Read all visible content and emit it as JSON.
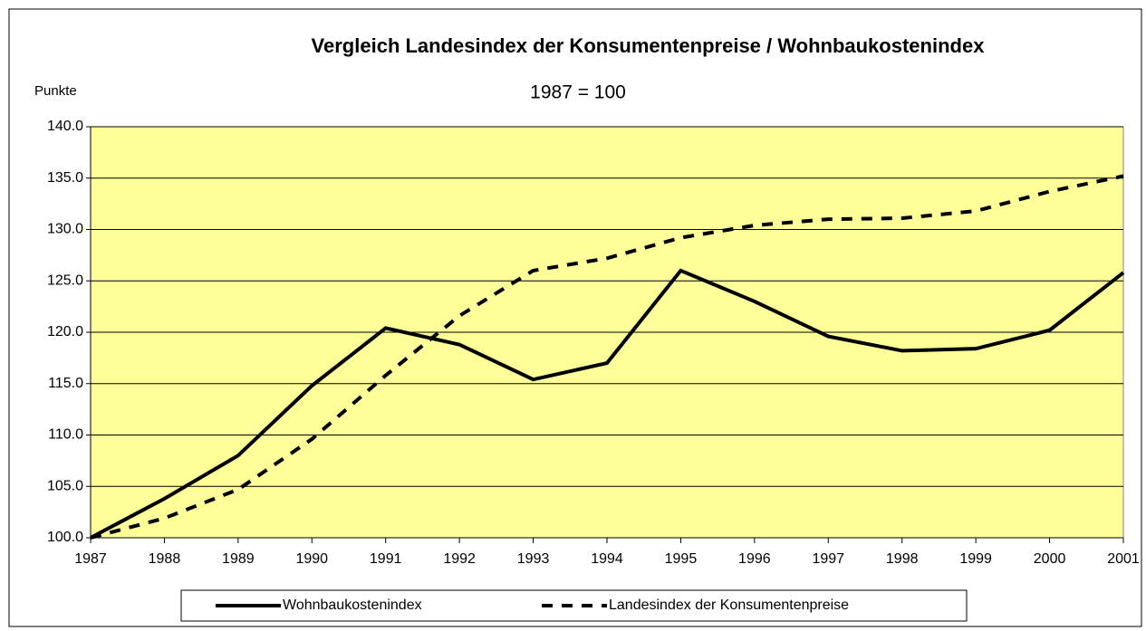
{
  "chart_data": {
    "type": "line",
    "title": "Vergleich Landesindex der Konsumentenpreise / Wohnbaukostenindex",
    "subtitle": "1987 = 100",
    "y_label": "Punkte",
    "categories": [
      "1987",
      "1988",
      "1989",
      "1990",
      "1991",
      "1992",
      "1993",
      "1994",
      "1995",
      "1996",
      "1997",
      "1998",
      "1999",
      "2000",
      "2001"
    ],
    "series": [
      {
        "name": "Wohnbaukostenindex",
        "color": "#000000",
        "dash": "solid",
        "values": [
          100.0,
          103.8,
          108.0,
          114.8,
          120.4,
          118.8,
          115.4,
          117.0,
          126.0,
          123.0,
          119.6,
          118.2,
          118.4,
          120.2,
          125.8
        ]
      },
      {
        "name": "Landesindex der Konsumentenpreise",
        "color": "#000000",
        "dash": "dashed",
        "values": [
          100.0,
          101.9,
          104.7,
          109.6,
          115.8,
          121.6,
          126.0,
          127.2,
          129.2,
          130.4,
          131.0,
          131.1,
          131.8,
          133.7,
          135.2
        ]
      }
    ],
    "ylim": [
      100,
      140
    ],
    "yticks": [
      {
        "value": 100,
        "label": "100.0"
      },
      {
        "value": 105,
        "label": "105.0"
      },
      {
        "value": 110,
        "label": "110.0"
      },
      {
        "value": 115,
        "label": "115.0"
      },
      {
        "value": 120,
        "label": "120.0"
      },
      {
        "value": 125,
        "label": "125.0"
      },
      {
        "value": 130,
        "label": "130.0"
      },
      {
        "value": 135,
        "label": "135.0"
      },
      {
        "value": 140,
        "label": "140.0"
      }
    ],
    "grid": true,
    "plot_background": "#ffff99",
    "legend": "bottom"
  }
}
